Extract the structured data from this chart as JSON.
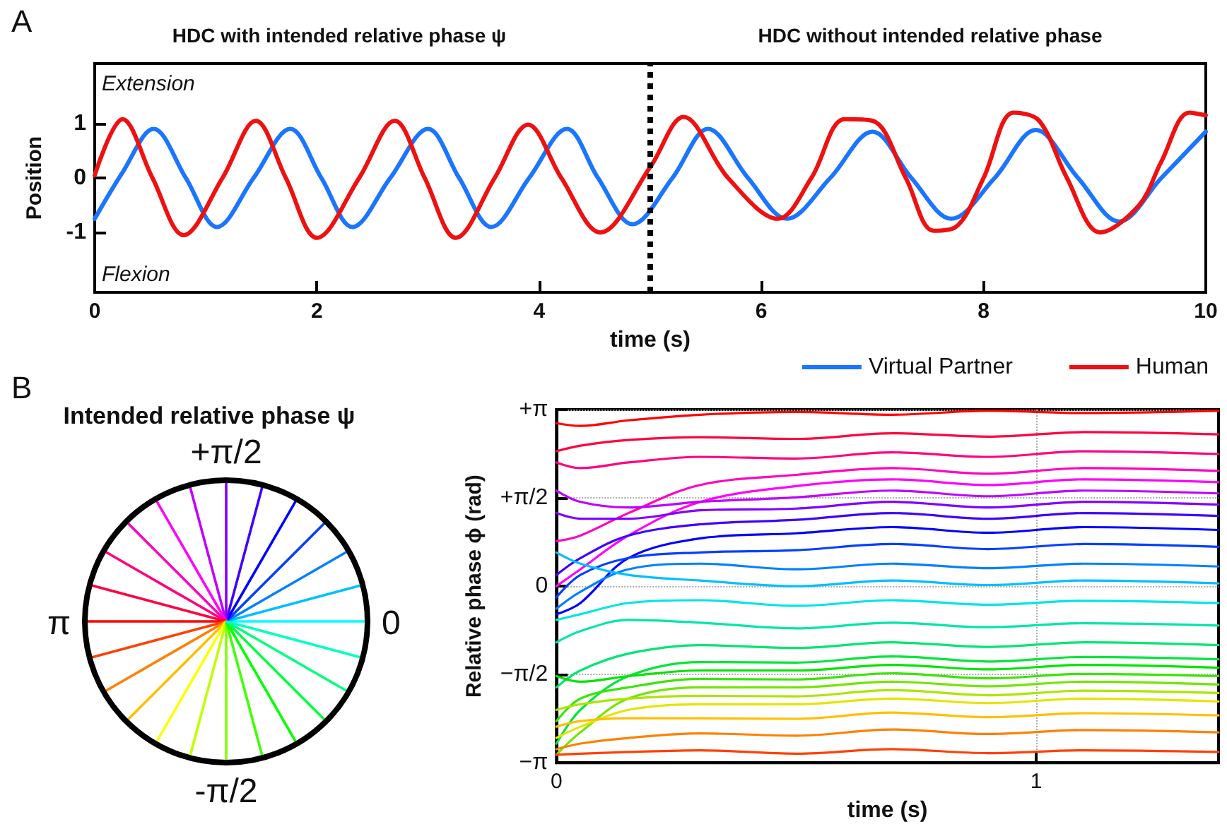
{
  "chart_data": [
    {
      "type": "line",
      "xlabel": "time (s)",
      "ylabel": "Position",
      "xlim": [
        0,
        10
      ],
      "xticks": [
        0,
        2,
        4,
        6,
        8,
        10
      ],
      "ylim": [
        -2.1,
        2.1
      ],
      "yticks": [
        -1,
        0,
        1
      ],
      "grid": false,
      "legend": "bottom right",
      "annotations": [
        "A",
        "HDC with intended relative phase ψ",
        "HDC without intended relative phase",
        "Extension",
        "Flexion"
      ],
      "ref_lines": [
        {
          "axis": "x",
          "value": 5,
          "color": "#000000",
          "line_style": "dotted"
        }
      ],
      "series": [
        {
          "name": "Virtual Partner",
          "color": "#1a75ff",
          "x": [
            0,
            0.25,
            0.53,
            0.82,
            1.1,
            1.43,
            1.76,
            2.04,
            2.32,
            2.66,
            3.0,
            3.28,
            3.57,
            3.91,
            4.25,
            4.53,
            4.84,
            5.2,
            5.52,
            5.88,
            6.23,
            6.62,
            7.0,
            7.35,
            7.71,
            8.1,
            8.47,
            8.85,
            9.22,
            9.6,
            10
          ],
          "values": [
            -0.75,
            0.1,
            0.9,
            0,
            -0.9,
            0,
            0.9,
            0,
            -0.9,
            0,
            0.9,
            0,
            -0.9,
            0,
            0.9,
            0,
            -0.85,
            0,
            0.9,
            0,
            -0.75,
            0,
            0.85,
            0,
            -0.75,
            0,
            0.88,
            0,
            -0.8,
            0,
            0.85
          ]
        },
        {
          "name": "Human",
          "color": "#ee1111",
          "x": [
            0,
            0.25,
            0.52,
            0.8,
            1.15,
            1.45,
            1.72,
            2.0,
            2.38,
            2.7,
            2.97,
            3.25,
            3.6,
            3.9,
            4.2,
            4.55,
            5.0,
            5.3,
            5.7,
            6.15,
            6.45,
            6.75,
            7.0,
            7.3,
            7.55,
            7.75,
            8.0,
            8.27,
            8.5,
            8.75,
            9.05,
            9.4,
            9.6,
            9.85,
            10
          ],
          "values": [
            0.05,
            1.08,
            0,
            -1.05,
            0,
            1.05,
            0,
            -1.1,
            0,
            1.05,
            0,
            -1.1,
            0,
            0.98,
            0,
            -1.0,
            0.2,
            1.12,
            0,
            -0.75,
            0,
            1.08,
            1.05,
            0,
            -0.97,
            -0.9,
            0,
            1.2,
            1.05,
            0,
            -1.0,
            -0.5,
            0.3,
            1.2,
            1.15
          ]
        }
      ]
    },
    {
      "type": "other",
      "title": "Intended relative phase ψ",
      "annotations": [
        "B",
        "+π/2",
        "π",
        "0",
        "-π/2"
      ]
    },
    {
      "type": "line",
      "xlabel": "time (s)",
      "ylabel": "Relative phase ϕ (rad)",
      "xlim": [
        0,
        1.38
      ],
      "xticks": [
        0,
        1
      ],
      "ylim": [
        -3.1416,
        3.1416
      ],
      "yticks": [
        {
          "value": -3.1416,
          "label": "−π"
        },
        {
          "value": -1.5708,
          "label": "−π/2"
        },
        0,
        {
          "value": 1.5708,
          "label": "+π/2"
        },
        {
          "value": 3.1416,
          "label": "+π"
        }
      ],
      "grid": true,
      "x": [
        0,
        0.05,
        0.15,
        0.3,
        0.5,
        0.7,
        0.9,
        1.1,
        1.38
      ],
      "series": [
        {
          "color": "#ff0000",
          "values": [
            2.9,
            2.85,
            2.95,
            3.05,
            3.1,
            3.05,
            3.12,
            3.08,
            3.12
          ]
        },
        {
          "color": "#ff0040",
          "values": [
            2.4,
            2.5,
            2.6,
            2.65,
            2.62,
            2.72,
            2.66,
            2.74,
            2.7
          ]
        },
        {
          "color": "#ff0080",
          "values": [
            2.2,
            2.1,
            2.2,
            2.3,
            2.27,
            2.38,
            2.3,
            2.4,
            2.35
          ]
        },
        {
          "color": "#ff00bf",
          "values": [
            0.8,
            0.9,
            1.3,
            1.8,
            1.98,
            2.1,
            2.0,
            2.1,
            2.05
          ]
        },
        {
          "color": "#ff00ff",
          "values": [
            0.0,
            0.3,
            0.9,
            1.5,
            1.78,
            1.9,
            1.8,
            1.9,
            1.85
          ]
        },
        {
          "color": "#bf00ff",
          "values": [
            1.7,
            1.5,
            1.4,
            1.5,
            1.58,
            1.7,
            1.6,
            1.7,
            1.65
          ]
        },
        {
          "color": "#8000ff",
          "values": [
            1.3,
            1.2,
            1.2,
            1.35,
            1.38,
            1.5,
            1.4,
            1.5,
            1.45
          ]
        },
        {
          "color": "#4000ff",
          "values": [
            0.2,
            0.5,
            0.9,
            1.1,
            1.18,
            1.3,
            1.2,
            1.3,
            1.25
          ]
        },
        {
          "color": "#0000ff",
          "values": [
            -0.5,
            -0.3,
            0.5,
            0.85,
            0.94,
            1.05,
            0.95,
            1.05,
            1.0
          ]
        },
        {
          "color": "#0040ff",
          "values": [
            -0.2,
            0.2,
            0.5,
            0.6,
            0.64,
            0.75,
            0.66,
            0.75,
            0.7
          ]
        },
        {
          "color": "#0080ff",
          "values": [
            -0.4,
            -0.1,
            0.3,
            0.4,
            0.3,
            0.4,
            0.32,
            0.4,
            0.35
          ]
        },
        {
          "color": "#00bfff",
          "values": [
            0.6,
            0.4,
            0.2,
            0.1,
            0.0,
            0.1,
            0.02,
            0.1,
            0.05
          ]
        },
        {
          "color": "#00e5e5",
          "values": [
            -0.6,
            -0.5,
            -0.3,
            -0.25,
            -0.35,
            -0.25,
            -0.33,
            -0.26,
            -0.3
          ]
        },
        {
          "color": "#00e5ac",
          "values": [
            -1.0,
            -0.8,
            -0.6,
            -0.65,
            -0.75,
            -0.65,
            -0.73,
            -0.66,
            -0.7
          ]
        },
        {
          "color": "#00e573",
          "values": [
            -1.8,
            -1.5,
            -1.2,
            -1.05,
            -1.1,
            -1.0,
            -1.08,
            -1.0,
            -1.05
          ]
        },
        {
          "color": "#00e53a",
          "values": [
            -2.8,
            -2.2,
            -1.6,
            -1.35,
            -1.36,
            -1.25,
            -1.34,
            -1.26,
            -1.3
          ]
        },
        {
          "color": "#00e500",
          "values": [
            -1.6,
            -1.7,
            -1.6,
            -1.5,
            -1.5,
            -1.4,
            -1.48,
            -1.4,
            -1.45
          ]
        },
        {
          "color": "#3ae500",
          "values": [
            -2.4,
            -2.0,
            -1.8,
            -1.65,
            -1.66,
            -1.55,
            -1.64,
            -1.56,
            -1.6
          ]
        },
        {
          "color": "#73e500",
          "values": [
            -3.0,
            -2.6,
            -2.0,
            -1.8,
            -1.8,
            -1.7,
            -1.78,
            -1.7,
            -1.75
          ]
        },
        {
          "color": "#ace500",
          "values": [
            -2.2,
            -2.1,
            -2.0,
            -1.95,
            -1.96,
            -1.85,
            -1.94,
            -1.86,
            -1.9
          ]
        },
        {
          "color": "#e5e500",
          "values": [
            -2.7,
            -2.5,
            -2.2,
            -2.1,
            -2.1,
            -2.0,
            -2.08,
            -2.0,
            -2.05
          ]
        },
        {
          "color": "#ffbf00",
          "values": [
            -2.5,
            -2.4,
            -2.35,
            -2.35,
            -2.36,
            -2.25,
            -2.33,
            -2.26,
            -2.3
          ]
        },
        {
          "color": "#ff8000",
          "values": [
            -2.9,
            -2.8,
            -2.7,
            -2.62,
            -2.66,
            -2.55,
            -2.63,
            -2.56,
            -2.6
          ]
        },
        {
          "color": "#ff4000",
          "values": [
            -3.0,
            -2.98,
            -2.95,
            -2.92,
            -2.98,
            -2.9,
            -2.97,
            -2.92,
            -2.95
          ]
        }
      ]
    }
  ]
}
